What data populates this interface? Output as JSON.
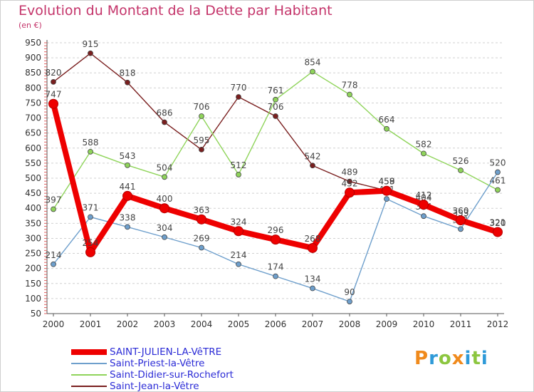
{
  "title": "Evolution du Montant de la Dette par Habitant",
  "unit_label": "(en €)",
  "logo": {
    "text": "Proxiti",
    "letter_colors": [
      "#f08a1c",
      "#2e9ad8",
      "#8cc63f",
      "#f08a1c",
      "#2e9ad8",
      "#8cc63f",
      "#2e9ad8"
    ]
  },
  "chart_data": {
    "type": "line",
    "title": "Evolution du Montant de la Dette par Habitant",
    "ylabel": "(en €)",
    "xlabel": "",
    "x": [
      "2000",
      "2001",
      "2002",
      "2003",
      "2004",
      "2005",
      "2006",
      "2007",
      "2008",
      "2009",
      "2010",
      "2011",
      "2012"
    ],
    "ylim": [
      50,
      950
    ],
    "yticks": [
      50,
      100,
      150,
      200,
      250,
      300,
      350,
      400,
      450,
      500,
      550,
      600,
      650,
      700,
      750,
      800,
      850,
      900,
      950
    ],
    "grid": "horizontal dashed",
    "legend_position": "bottom-left",
    "series": [
      {
        "name": "Saint-Jean-la-Vêtre",
        "color": "#7a1f1f",
        "emphasis": false,
        "values": [
          820,
          915,
          818,
          686,
          595,
          770,
          706,
          542,
          489,
          459,
          404,
          353,
          320
        ]
      },
      {
        "name": "Saint-Didier-sur-Rochefort",
        "color": "#8fd45a",
        "emphasis": false,
        "values": [
          397,
          588,
          543,
          504,
          706,
          512,
          761,
          854,
          778,
          664,
          582,
          526,
          461
        ]
      },
      {
        "name": "Saint-Priest-la-Vêtre",
        "color": "#6e9fcc",
        "emphasis": false,
        "values": [
          214,
          371,
          338,
          304,
          269,
          214,
          174,
          134,
          90,
          431,
          374,
          331,
          520
        ]
      },
      {
        "name": "SAINT-JULIEN-LA-VêTRE",
        "color": "#ee0000",
        "emphasis": true,
        "values": [
          747,
          254,
          441,
          400,
          363,
          324,
          296,
          268,
          452,
          458,
          412,
          360,
          321
        ]
      }
    ]
  },
  "legend": [
    {
      "label": "SAINT-JULIEN-LA-VêTRE",
      "color": "#ee0000",
      "thick": true
    },
    {
      "label": "Saint-Priest-la-Vêtre",
      "color": "#6e9fcc",
      "thick": false
    },
    {
      "label": "Saint-Didier-sur-Rochefort",
      "color": "#8fd45a",
      "thick": false
    },
    {
      "label": "Saint-Jean-la-Vêtre",
      "color": "#7a1f1f",
      "thick": false
    }
  ]
}
